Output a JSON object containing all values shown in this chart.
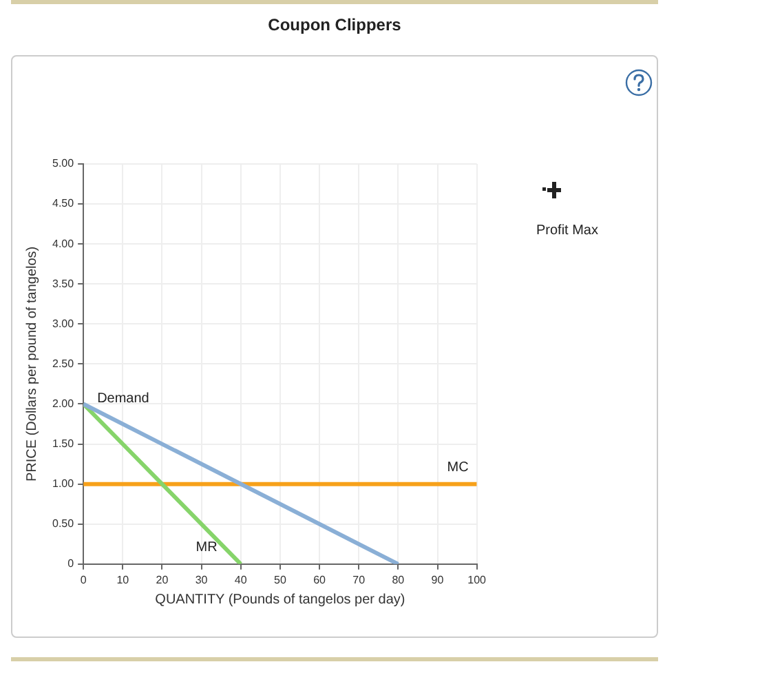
{
  "chart_data": {
    "type": "line",
    "title": "Coupon Clippers",
    "xlabel": "QUANTITY (Pounds of tangelos per day)",
    "ylabel": "PRICE (Dollars per pound of tangelos)",
    "annotations": [
      "Profit Max"
    ],
    "series": [
      {
        "name": "Demand",
        "color": "#8aafd6",
        "x": [
          0,
          80
        ],
        "values": [
          2,
          0
        ]
      },
      {
        "name": "MR",
        "color": "#86d46a",
        "x": [
          0,
          40
        ],
        "values": [
          2,
          0
        ]
      },
      {
        "name": "MC",
        "color": "#f7a11a",
        "x": [
          0,
          100
        ],
        "values": [
          1,
          1
        ]
      }
    ],
    "xlim": [
      0,
      100
    ],
    "xticks": [
      0,
      10,
      20,
      30,
      40,
      50,
      60,
      70,
      80,
      90,
      100
    ],
    "ylim": [
      0,
      5
    ],
    "yticks": [
      0,
      {
        "value": 0.5,
        "label": "0.50"
      },
      {
        "value": 1,
        "label": "1.00"
      },
      {
        "value": 1.5,
        "label": "1.50"
      },
      {
        "value": 2,
        "label": "2.00"
      },
      {
        "value": 2.5,
        "label": "2.50"
      },
      {
        "value": 3,
        "label": "3.00"
      },
      {
        "value": 3.5,
        "label": "3.50"
      },
      {
        "value": 4,
        "label": "4.00"
      },
      {
        "value": 4.5,
        "label": "4.50"
      },
      {
        "value": 5,
        "label": "5.00"
      }
    ],
    "grid": true,
    "legend": false,
    "marker": "none",
    "line_style": "solid"
  }
}
